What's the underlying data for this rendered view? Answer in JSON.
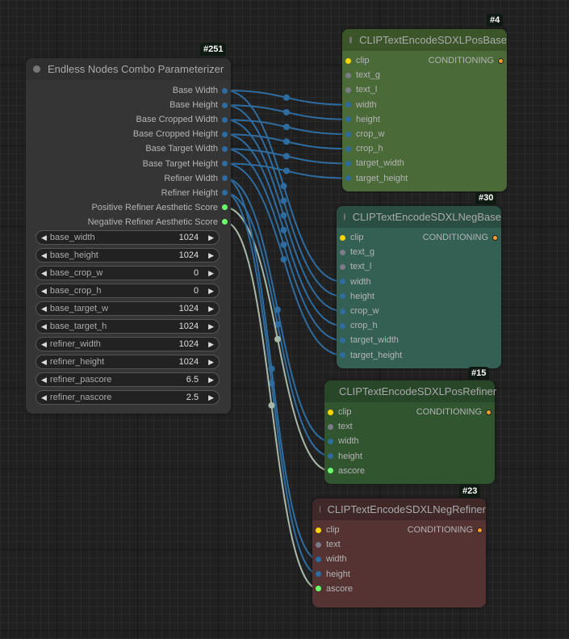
{
  "nodes": {
    "param": {
      "id": "#251",
      "title": "Endless Nodes Combo Parameterizer",
      "outputs": [
        "Base Width",
        "Base Height",
        "Base Cropped Width",
        "Base Cropped Height",
        "Base Target Width",
        "Base Target Height",
        "Refiner Width",
        "Refiner Height",
        "Positive Refiner Aesthetic Score",
        "Negative Refiner Aesthetic Score"
      ],
      "widgets": [
        {
          "label": "base_width",
          "value": "1024"
        },
        {
          "label": "base_height",
          "value": "1024"
        },
        {
          "label": "base_crop_w",
          "value": "0"
        },
        {
          "label": "base_crop_h",
          "value": "0"
        },
        {
          "label": "base_target_w",
          "value": "1024"
        },
        {
          "label": "base_target_h",
          "value": "1024"
        },
        {
          "label": "refiner_width",
          "value": "1024"
        },
        {
          "label": "refiner_height",
          "value": "1024"
        },
        {
          "label": "refiner_pascore",
          "value": "6.5"
        },
        {
          "label": "refiner_nascore",
          "value": "2.5"
        }
      ]
    },
    "posbase": {
      "id": "#4",
      "title": "CLIPTextEncodeSDXLPosBase",
      "output": "CONDITIONING",
      "inputs": [
        "clip",
        "text_g",
        "text_l",
        "width",
        "height",
        "crop_w",
        "crop_h",
        "target_width",
        "target_height"
      ]
    },
    "negbase": {
      "id": "#30",
      "title": "CLIPTextEncodeSDXLNegBase",
      "output": "CONDITIONING",
      "inputs": [
        "clip",
        "text_g",
        "text_l",
        "width",
        "height",
        "crop_w",
        "crop_h",
        "target_width",
        "target_height"
      ]
    },
    "posref": {
      "id": "#15",
      "title": "CLIPTextEncodeSDXLPosRefiner",
      "output": "CONDITIONING",
      "inputs": [
        "clip",
        "text",
        "width",
        "height",
        "ascore"
      ]
    },
    "negref": {
      "id": "#23",
      "title": "CLIPTextEncodeSDXLNegRefiner",
      "output": "CONDITIONING",
      "inputs": [
        "clip",
        "text",
        "width",
        "height",
        "ascore"
      ]
    }
  },
  "colors": {
    "int_wire": "#2e6ca0",
    "float_wire": "#a8b8a8",
    "posbase": "#4a6a38",
    "negbase": "#336052",
    "posref": "#30552f",
    "negref": "#553333",
    "default": "#353535"
  },
  "links": [
    [
      0,
      "posbase",
      3
    ],
    [
      1,
      "posbase",
      4
    ],
    [
      2,
      "posbase",
      5
    ],
    [
      3,
      "posbase",
      6
    ],
    [
      4,
      "posbase",
      7
    ],
    [
      5,
      "posbase",
      8
    ],
    [
      0,
      "negbase",
      3
    ],
    [
      1,
      "negbase",
      4
    ],
    [
      2,
      "negbase",
      5
    ],
    [
      3,
      "negbase",
      6
    ],
    [
      4,
      "negbase",
      7
    ],
    [
      5,
      "negbase",
      8
    ],
    [
      6,
      "posref",
      2
    ],
    [
      7,
      "posref",
      3
    ],
    [
      8,
      "posref",
      4
    ],
    [
      6,
      "negref",
      2
    ],
    [
      7,
      "negref",
      3
    ],
    [
      9,
      "negref",
      4
    ]
  ]
}
